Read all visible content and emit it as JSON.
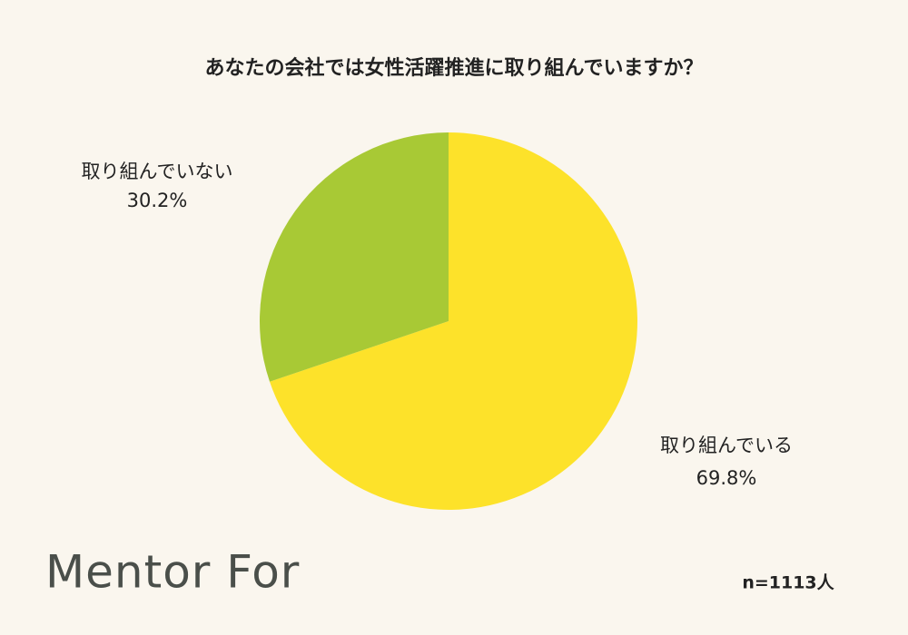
{
  "chart_data": {
    "type": "pie",
    "title": "あなたの会社では女性活躍推進に取り組んでいますか？",
    "categories": [
      "取り組んでいる",
      "取り組んでいない"
    ],
    "values": [
      69.8,
      30.2
    ],
    "value_labels": [
      "69.8%",
      "30.2%"
    ],
    "colors": [
      "#fde22a",
      "#a8c935"
    ],
    "note": "n=1113人",
    "logo": "Mentor For"
  }
}
